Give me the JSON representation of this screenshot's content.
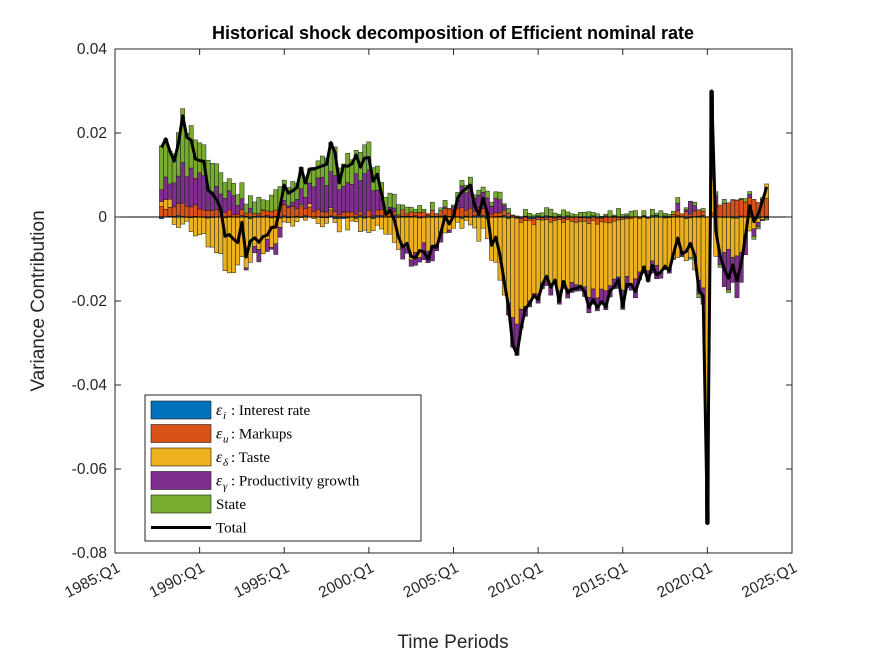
{
  "chart_data": {
    "type": "stacked-bar-with-line",
    "title": "Historical shock decomposition of Efficient nominal rate",
    "xlabel": "Time Periods",
    "ylabel": "Variance Contribution",
    "ylim": [
      -0.08,
      0.04
    ],
    "yticks": [
      0.04,
      0.02,
      0,
      -0.02,
      -0.04,
      -0.06,
      -0.08
    ],
    "ytick_labels": [
      "0.04",
      "0.02",
      "0",
      "-0.02",
      "-0.04",
      "-0.06",
      "-0.08"
    ],
    "xlim": [
      1985.0,
      2025.0
    ],
    "xticks": [
      1985,
      1990,
      1995,
      2000,
      2005,
      2010,
      2015,
      2020,
      2025
    ],
    "xtick_labels": [
      "1985:Q1",
      "1990:Q1",
      "1995:Q1",
      "2000:Q1",
      "2005:Q1",
      "2010:Q1",
      "2015:Q1",
      "2020:Q1",
      "2025:Q1"
    ],
    "grid": false,
    "legend_position": "bottom-left",
    "period_start": "1987:Q4",
    "period_end": "2023:Q3",
    "series": [
      {
        "key": "interest",
        "symbol": "ε",
        "subscript": "i",
        "label": ": Interest rate",
        "color": "#0072BD",
        "values_key": [
          0.0,
          0.0005,
          0.0,
          -0.0003,
          0.0,
          0.0,
          0.0004,
          0.0,
          0.0
        ]
      },
      {
        "key": "markups",
        "symbol": "ε",
        "subscript": "u",
        "label": ": Markups",
        "color": "#D95319"
      },
      {
        "key": "taste",
        "symbol": "ε",
        "subscript": "δ",
        "label": ": Taste",
        "color": "#EDB120"
      },
      {
        "key": "productivity",
        "symbol": "ε",
        "subscript": "γ",
        "label": ": Productivity growth",
        "color": "#7E2F8E"
      },
      {
        "key": "state",
        "symbol": "",
        "subscript": "",
        "label": "State",
        "color": "#77AC30"
      },
      {
        "key": "total",
        "symbol": "",
        "subscript": "",
        "label": "Total",
        "color": "#000000"
      }
    ],
    "key_points": {
      "comment_free_anchor": "",
      "x": [
        1987.75,
        1988.5,
        1989.0,
        1990.0,
        1991.5,
        1992.5,
        1994.0,
        1995.0,
        1996.5,
        1997.5,
        1999.0,
        2000.0,
        2001.0,
        2002.5,
        2004.0,
        2005.5,
        2007.0,
        2008.0,
        2008.75,
        2009.5,
        2011.0,
        2013.0,
        2015.0,
        2017.0,
        2019.0,
        2019.75,
        2020.0,
        2020.25,
        2020.5,
        2021.0,
        2021.75,
        2022.5,
        2023.5
      ],
      "total": [
        0.018,
        0.012,
        0.021,
        0.014,
        -0.005,
        -0.01,
        -0.005,
        0.004,
        0.01,
        0.014,
        0.012,
        0.016,
        0.001,
        -0.01,
        -0.004,
        0.008,
        0.004,
        -0.02,
        -0.031,
        -0.017,
        -0.015,
        -0.019,
        -0.018,
        -0.013,
        -0.005,
        -0.02,
        -0.072,
        0.03,
        -0.004,
        -0.012,
        -0.012,
        0.0,
        0.005
      ],
      "taste": [
        0.002,
        0.0,
        -0.002,
        -0.003,
        -0.012,
        -0.011,
        -0.006,
        -0.003,
        -0.001,
        -0.001,
        -0.002,
        -0.002,
        -0.004,
        -0.01,
        -0.005,
        -0.002,
        -0.005,
        -0.019,
        -0.024,
        -0.018,
        -0.015,
        -0.016,
        -0.015,
        -0.012,
        -0.008,
        -0.016,
        -0.07,
        0.008,
        -0.008,
        -0.008,
        -0.009,
        -0.004,
        0.002
      ],
      "markups": [
        0.002,
        0.002,
        0.003,
        0.002,
        0.001,
        0.001,
        0.001,
        0.002,
        0.002,
        0.001,
        0.001,
        0.001,
        0.001,
        0.001,
        0.001,
        0.002,
        0.001,
        0.001,
        0.0,
        -0.001,
        -0.001,
        -0.001,
        -0.001,
        0.0,
        0.001,
        0.001,
        0.0,
        0.001,
        0.002,
        0.003,
        0.004,
        0.004,
        0.004
      ],
      "productivity": [
        0.004,
        0.005,
        0.008,
        0.007,
        0.004,
        0.001,
        -0.002,
        0.0,
        0.005,
        0.008,
        0.007,
        0.01,
        0.0,
        -0.003,
        -0.002,
        0.004,
        0.005,
        0.0,
        -0.008,
        -0.002,
        -0.002,
        -0.003,
        -0.003,
        -0.002,
        0.002,
        -0.004,
        -0.003,
        0.021,
        0.001,
        -0.008,
        -0.008,
        0.0,
        0.001
      ],
      "state": [
        0.01,
        0.007,
        0.012,
        0.008,
        0.004,
        0.003,
        0.003,
        0.005,
        0.004,
        0.006,
        0.006,
        0.007,
        0.003,
        0.001,
        0.001,
        0.001,
        0.002,
        0.001,
        0.001,
        0.001,
        0.001,
        0.001,
        0.001,
        0.001,
        0.0,
        0.0,
        0.0,
        0.0,
        0.0,
        0.0,
        0.0,
        0.0,
        0.0
      ]
    }
  }
}
